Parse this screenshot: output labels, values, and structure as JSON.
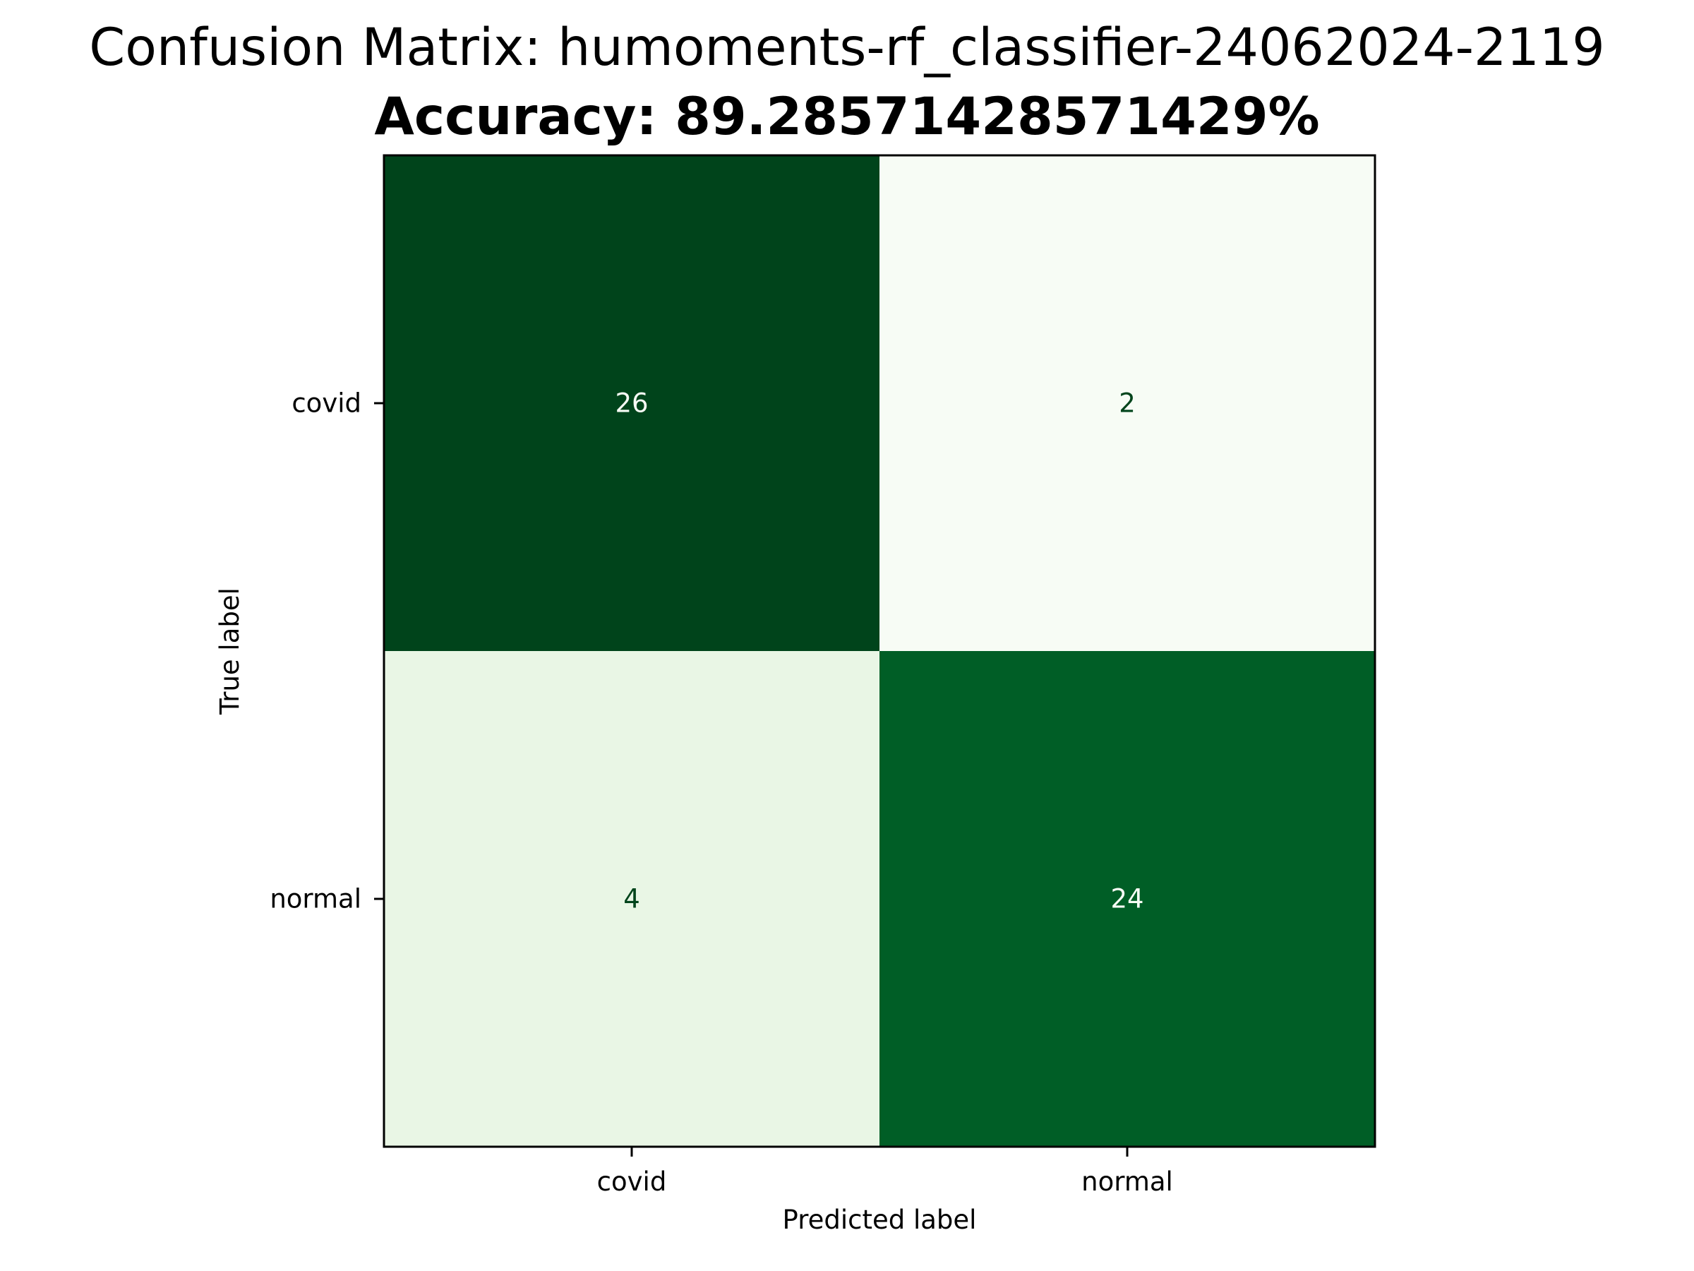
{
  "chart_data": {
    "type": "heatmap",
    "title": "Confusion Matrix: humoments-rf_classifier-24062024-2119",
    "subtitle": "Accuracy: 89.28571428571429%",
    "xlabel": "Predicted label",
    "ylabel": "True label",
    "x_categories": [
      "covid",
      "normal"
    ],
    "y_categories": [
      "covid",
      "normal"
    ],
    "values": [
      [
        26,
        2
      ],
      [
        4,
        24
      ]
    ],
    "colormap": "Greens",
    "value_range": [
      2,
      26
    ],
    "colors": {
      "cells": [
        [
          "#00441b",
          "#f7fcf5"
        ],
        [
          "#e9f6e5",
          "#005e26"
        ]
      ],
      "text_on_dark": "#f7fcf5",
      "text_on_light": "#00441b"
    },
    "grid": false,
    "colorbar": false
  }
}
